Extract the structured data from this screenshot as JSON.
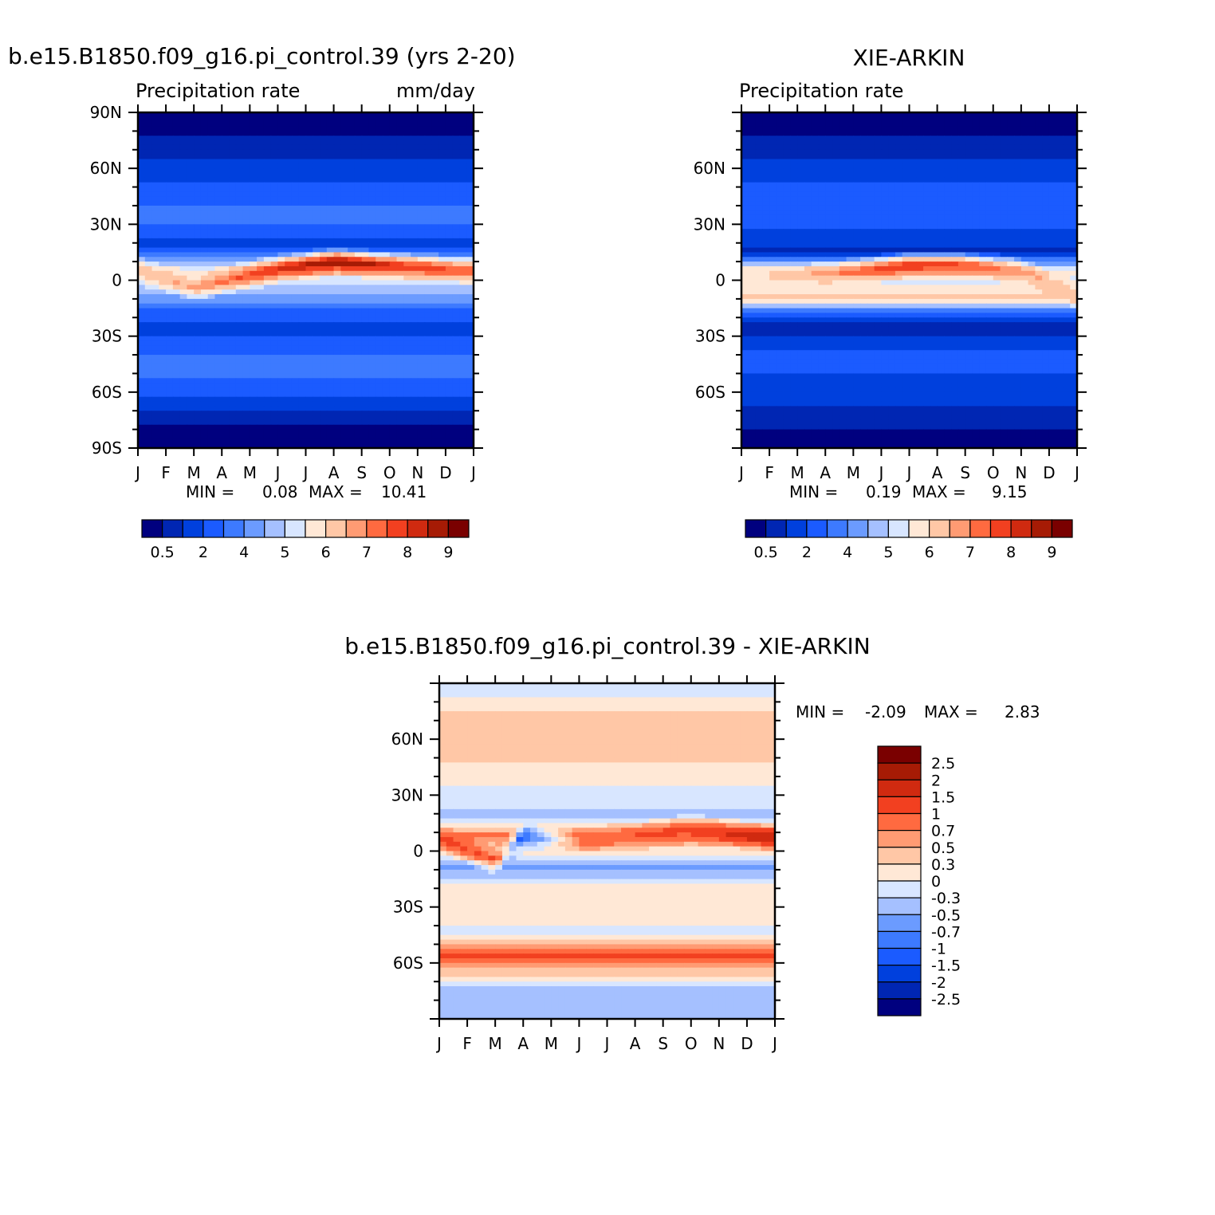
{
  "palette": {
    "abs": [
      "#00007f",
      "#0026b3",
      "#0040dd",
      "#1b5bff",
      "#3d7aff",
      "#6b9bff",
      "#a5c0ff",
      "#d8e6ff",
      "#ffe8d6",
      "#ffc7a6",
      "#ff9b73",
      "#ff6a40",
      "#f24020",
      "#d02a10",
      "#a61b05",
      "#7a0000"
    ],
    "diff": [
      "#00007f",
      "#0026b3",
      "#0040dd",
      "#1b5bff",
      "#3d7aff",
      "#6b9bff",
      "#a5c0ff",
      "#d8e6ff",
      "#ffe8d6",
      "#ffc7a6",
      "#ff9b73",
      "#ff6a40",
      "#f24020",
      "#d02a10",
      "#a61b05",
      "#7a0000"
    ]
  },
  "months": [
    "J",
    "F",
    "M",
    "A",
    "M",
    "J",
    "J",
    "A",
    "S",
    "O",
    "N",
    "D",
    "J"
  ],
  "chart_data": [
    {
      "type": "heatmap",
      "title": "b.e15.B1850.f09_g16.pi_control.39 (yrs 2-20)",
      "left_label": "Precipitation rate",
      "right_label": "mm/day",
      "ylim": [
        -90,
        90
      ],
      "y_ticks": [
        "90N",
        "60N",
        "30N",
        "0",
        "30S",
        "60S",
        "90S"
      ],
      "stats": {
        "min_label": "MIN =",
        "min": "0.08",
        "max_label": "MAX =",
        "max": "10.41"
      },
      "colorbar_labels": [
        "0.5",
        "2",
        "4",
        "5",
        "6",
        "7",
        "8",
        "9"
      ],
      "field": {
        "bands": [
          {
            "lat": 85,
            "level": 0
          },
          {
            "lat": 72,
            "level": 1
          },
          {
            "lat": 60,
            "level": 2
          },
          {
            "lat": 45,
            "level": 3
          },
          {
            "lat": 35,
            "level": 4
          },
          {
            "lat": 25,
            "level": 3
          },
          {
            "lat": 18,
            "level": 2
          },
          {
            "lat": 5,
            "level": 8
          },
          {
            "lat": 0,
            "level": 7
          },
          {
            "lat": -10,
            "level": 5
          },
          {
            "lat": -18,
            "level": 3
          },
          {
            "lat": -25,
            "level": 2
          },
          {
            "lat": -45,
            "level": 4
          },
          {
            "lat": -60,
            "level": 3
          },
          {
            "lat": -72,
            "level": 1
          },
          {
            "lat": -85,
            "level": 0
          }
        ],
        "itcz": [
          {
            "month": 0,
            "lat": 5,
            "level": 9
          },
          {
            "month": 2,
            "lat": -4,
            "level": 10
          },
          {
            "month": 5,
            "lat": 6,
            "level": 13
          },
          {
            "month": 7,
            "lat": 10,
            "level": 15
          },
          {
            "month": 9,
            "lat": 8,
            "level": 13
          },
          {
            "month": 12,
            "lat": 5,
            "level": 11
          }
        ]
      }
    },
    {
      "type": "heatmap",
      "title": "XIE-ARKIN",
      "left_label": "Precipitation rate",
      "right_label": "",
      "ylim": [
        -90,
        90
      ],
      "y_ticks": [
        "60N",
        "30N",
        "0",
        "30S",
        "60S"
      ],
      "stats": {
        "min_label": "MIN =",
        "min": "0.19",
        "max_label": "MAX =",
        "max": "9.15"
      },
      "colorbar_labels": [
        "0.5",
        "2",
        "4",
        "5",
        "6",
        "7",
        "8",
        "9"
      ],
      "field": {
        "bands": [
          {
            "lat": 85,
            "level": 0
          },
          {
            "lat": 72,
            "level": 1
          },
          {
            "lat": 58,
            "level": 2
          },
          {
            "lat": 45,
            "level": 3
          },
          {
            "lat": 32,
            "level": 3
          },
          {
            "lat": 22,
            "level": 2
          },
          {
            "lat": 15,
            "level": 1
          },
          {
            "lat": 5,
            "level": 8
          },
          {
            "lat": 0,
            "level": 7
          },
          {
            "lat": -10,
            "level": 9
          },
          {
            "lat": -18,
            "level": 3
          },
          {
            "lat": -25,
            "level": 1
          },
          {
            "lat": -42,
            "level": 3
          },
          {
            "lat": -60,
            "level": 2
          },
          {
            "lat": -75,
            "level": 1
          },
          {
            "lat": -85,
            "level": 0
          }
        ],
        "itcz": [
          {
            "month": 0,
            "lat": 2,
            "level": 8
          },
          {
            "month": 3,
            "lat": 3,
            "level": 10
          },
          {
            "month": 6,
            "lat": 8,
            "level": 13
          },
          {
            "month": 8,
            "lat": 8,
            "level": 12
          },
          {
            "month": 10,
            "lat": 5,
            "level": 10
          },
          {
            "month": 12,
            "lat": -8,
            "level": 9
          }
        ]
      }
    },
    {
      "type": "heatmap",
      "title": "b.e15.B1850.f09_g16.pi_control.39 - XIE-ARKIN",
      "ylim": [
        -90,
        90
      ],
      "y_ticks": [
        "60N",
        "30N",
        "0",
        "30S",
        "60S"
      ],
      "stats": {
        "min_label": "MIN =",
        "min": "-2.09",
        "max_label": "MAX =",
        "max": "2.83"
      },
      "colorbar_labels": [
        "2.5",
        "2",
        "1.5",
        "1",
        "0.7",
        "0.5",
        "0.3",
        "0",
        "-0.3",
        "-0.5",
        "-0.7",
        "-1",
        "-1.5",
        "-2",
        "-2.5"
      ],
      "field": {
        "bands": [
          {
            "lat": 85,
            "level": 7
          },
          {
            "lat": 70,
            "level": 9
          },
          {
            "lat": 55,
            "level": 9
          },
          {
            "lat": 40,
            "level": 8
          },
          {
            "lat": 28,
            "level": 7
          },
          {
            "lat": 18,
            "level": 6
          },
          {
            "lat": 8,
            "level": 11
          },
          {
            "lat": 0,
            "level": 8
          },
          {
            "lat": -8,
            "level": 5
          },
          {
            "lat": -20,
            "level": 8
          },
          {
            "lat": -35,
            "level": 8
          },
          {
            "lat": -45,
            "level": 7
          },
          {
            "lat": -55,
            "level": 12
          },
          {
            "lat": -65,
            "level": 9
          },
          {
            "lat": -75,
            "level": 6
          },
          {
            "lat": -85,
            "level": 6
          }
        ],
        "itcz": [
          {
            "month": 0,
            "lat": 6,
            "level": 12
          },
          {
            "month": 2,
            "lat": -5,
            "level": 12
          },
          {
            "month": 3,
            "lat": 8,
            "level": 2
          },
          {
            "month": 5,
            "lat": 5,
            "level": 11
          },
          {
            "month": 9,
            "lat": 12,
            "level": 12
          },
          {
            "month": 12,
            "lat": 7,
            "level": 14
          }
        ]
      }
    }
  ]
}
